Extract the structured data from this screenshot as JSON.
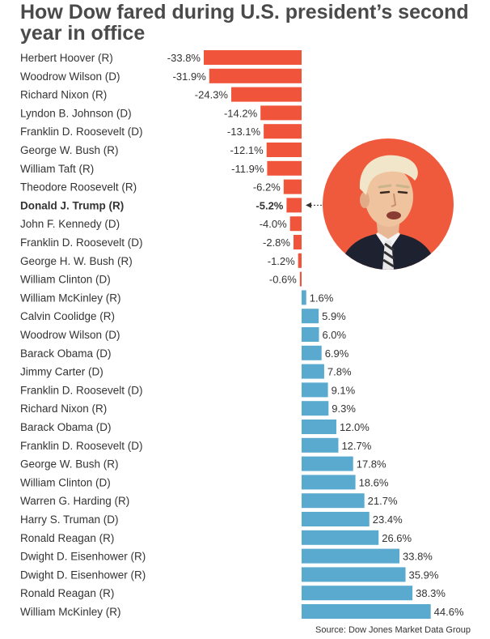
{
  "title": "How Dow fared during U.S. president’s second year in office",
  "source": "Source: Dow Jones Market Data Group",
  "colors": {
    "negative": "#f0553b",
    "positive": "#5aaad0",
    "circle": "#ef5a3c"
  },
  "portrait_icon": "donald-trump-portrait-icon",
  "chart_data": {
    "type": "bar",
    "orientation": "horizontal",
    "title": "How Dow fared during U.S. president’s second year in office",
    "xlabel": "",
    "ylabel": "",
    "unit": "%",
    "xlim": [
      -33.8,
      44.6
    ],
    "highlight": "Donald J. Trump (R)",
    "categories": [
      "Herbert Hoover (R)",
      "Woodrow Wilson (D)",
      "Richard Nixon (R)",
      "Lyndon B. Johnson (D)",
      "Franklin D. Roosevelt (D)",
      "George W. Bush (R)",
      "William Taft (R)",
      "Theodore Roosevelt (R)",
      "Donald J. Trump (R)",
      "John F. Kennedy (D)",
      "Franklin D. Roosevelt (D)",
      "George H. W. Bush (R)",
      "William Clinton (D)",
      "William McKinley (R)",
      "Calvin Coolidge (R)",
      "Woodrow Wilson (D)",
      "Barack Obama (D)",
      "Jimmy Carter (D)",
      "Franklin D. Roosevelt (D)",
      "Richard Nixon (R)",
      "Barack Obama (D)",
      "Franklin D. Roosevelt (D)",
      "George W. Bush (R)",
      "William Clinton (D)",
      "Warren G. Harding (R)",
      "Harry S. Truman (D)",
      "Ronald Reagan (R)",
      "Dwight D. Eisenhower (R)",
      "Dwight D. Eisenhower (R)",
      "Ronald Reagan (R)",
      "William McKinley (R)"
    ],
    "values": [
      -33.8,
      -31.9,
      -24.3,
      -14.2,
      -13.1,
      -12.1,
      -11.9,
      -6.2,
      -5.2,
      -4.0,
      -2.8,
      -1.2,
      -0.6,
      1.6,
      5.9,
      6.0,
      6.9,
      7.8,
      9.1,
      9.3,
      12.0,
      12.7,
      17.8,
      18.6,
      21.7,
      23.4,
      26.6,
      33.8,
      35.9,
      38.3,
      44.6
    ],
    "value_labels": [
      "-33.8%",
      "-31.9%",
      "-24.3%",
      "-14.2%",
      "-13.1%",
      "-12.1%",
      "-11.9%",
      "-6.2%",
      "-5.2%",
      "-4.0%",
      "-2.8%",
      "-1.2%",
      "-0.6%",
      "1.6%",
      "5.9%",
      "6.0%",
      "6.9%",
      "7.8%",
      "9.1%",
      "9.3%",
      "12.0%",
      "12.7%",
      "17.8%",
      "18.6%",
      "21.7%",
      "23.4%",
      "26.6%",
      "33.8%",
      "35.9%",
      "38.3%",
      "44.6%"
    ]
  }
}
